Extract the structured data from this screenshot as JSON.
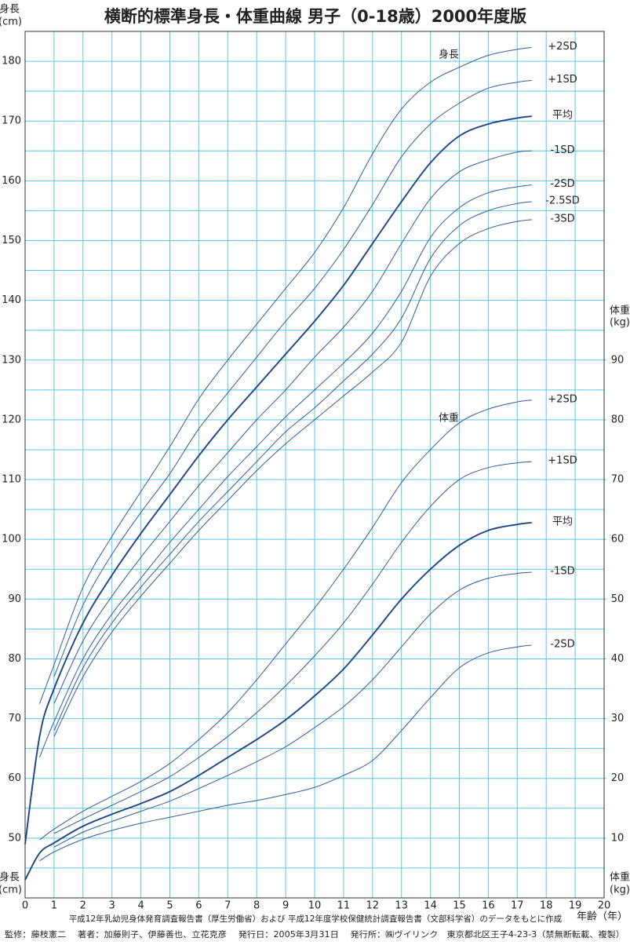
{
  "chart_data": {
    "type": "line",
    "title": "横断的標準身長・体重曲線 男子（0-18歳）2000年度版",
    "ylabel": "身長",
    "ylabel_unit": "(cm)",
    "y2label": "体重",
    "y2label_unit": "(kg)",
    "xlabel": "年齢（年）",
    "annotations": [
      "身長",
      "体重"
    ],
    "notes": [
      "平成12年乳幼児身体発育調査報告書（厚生労働省）および 平成12年度学校保健統計調査報告書（文部科学省）のデータをもとに作成",
      "監修：藤枝憲二　 著者：加藤則子、伊藤善也、立花克彦　 発行日：2005年3月31日　 発行所：㈱ヴイリンク　東京都北区王子4-23-3（禁無断転載、複製）"
    ],
    "x": [
      0,
      0.5,
      1,
      2,
      3,
      4,
      5,
      6,
      7,
      8,
      9,
      10,
      11,
      12,
      13,
      14,
      15,
      16,
      17,
      17.5
    ],
    "xlim": [
      0,
      20
    ],
    "xticks": [
      0,
      1,
      2,
      3,
      4,
      5,
      6,
      7,
      8,
      9,
      10,
      11,
      12,
      13,
      14,
      15,
      16,
      17,
      18,
      19,
      20
    ],
    "ylim": [
      40,
      185
    ],
    "yticks": [
      50,
      60,
      70,
      80,
      90,
      100,
      110,
      120,
      130,
      140,
      150,
      160,
      170,
      180
    ],
    "yminorticks": [
      45,
      55,
      65,
      75,
      85,
      95,
      105,
      115,
      125,
      135,
      145,
      155,
      165,
      175,
      185
    ],
    "y2lim": [
      0,
      145
    ],
    "y2ticks": [
      10,
      20,
      30,
      40,
      50,
      60,
      70,
      80,
      90
    ],
    "grid": true,
    "grid_color": "#5cc6e6",
    "series": [
      {
        "name": "+2SD",
        "color": "#2d5d9e",
        "line_width": 1,
        "values": [
          null,
          72.5,
          79,
          92,
          100.5,
          108,
          115.5,
          123.5,
          130,
          136,
          142,
          148,
          155.5,
          164.5,
          172,
          176.5,
          179,
          181,
          182,
          182.3
        ]
      },
      {
        "name": "+1SD",
        "color": "#2d5d9e",
        "line_width": 1,
        "values": [
          null,
          null,
          77,
          89,
          97.5,
          104.5,
          111,
          118.5,
          124.5,
          130.5,
          136.5,
          142,
          148.5,
          156,
          164,
          169.5,
          173,
          175.5,
          176.5,
          176.8
        ]
      },
      {
        "name": "平均",
        "color": "#1b4586",
        "line_width": 1.9,
        "values": [
          49,
          67,
          75,
          86,
          94,
          101,
          107.5,
          114,
          120,
          125.5,
          131,
          136.5,
          142.5,
          149.5,
          156.5,
          163,
          167.5,
          169.5,
          170.5,
          170.8
        ]
      },
      {
        "name": "-1SD",
        "color": "#2d5d9e",
        "line_width": 1,
        "values": [
          null,
          null,
          72.5,
          83,
          90.5,
          97,
          103,
          109,
          114.5,
          120,
          125,
          130.5,
          135.5,
          141.5,
          149.5,
          157,
          161.5,
          163.5,
          164.8,
          165
        ]
      },
      {
        "name": "-2SD",
        "color": "#2d5d9e",
        "line_width": 1,
        "values": [
          null,
          63.5,
          69.5,
          80,
          87.5,
          93.5,
          99.5,
          105,
          110.5,
          115.5,
          120.5,
          125,
          129.5,
          134.5,
          141.5,
          150.5,
          155.5,
          158,
          159,
          159.3
        ]
      },
      {
        "name": "-2.5SD",
        "color": "#2d5d9e",
        "line_width": 1,
        "values": [
          null,
          null,
          68,
          78.5,
          86,
          92,
          97.5,
          103,
          108,
          113,
          118,
          122,
          126.5,
          131,
          137,
          147,
          152.5,
          155,
          156.2,
          156.5
        ]
      },
      {
        "name": "-3SD",
        "color": "#2d5d9e",
        "line_width": 1,
        "values": [
          null,
          null,
          67,
          77,
          84.5,
          90.5,
          96,
          101.5,
          106.5,
          111.5,
          116,
          120,
          124,
          128,
          133,
          144,
          149.5,
          152,
          153.2,
          153.5
        ]
      },
      {
        "name": "+2SD",
        "axis": "y2",
        "color": "#2d5d9e",
        "line_width": 1,
        "values": [
          null,
          9.7,
          11.5,
          14.5,
          17,
          19.5,
          22.5,
          26.5,
          31,
          36.5,
          42.5,
          48.5,
          55,
          62,
          69.5,
          75,
          79.5,
          81.8,
          83,
          83.3
        ]
      },
      {
        "name": "+1SD",
        "axis": "y2",
        "color": "#2d5d9e",
        "line_width": 1,
        "values": [
          null,
          null,
          10.8,
          13.2,
          15.5,
          17.8,
          20.3,
          23.5,
          27,
          31,
          35.5,
          40.5,
          46,
          52.5,
          59.5,
          65.5,
          70,
          72,
          72.8,
          73
        ]
      },
      {
        "name": "平均",
        "axis": "y2",
        "color": "#1b4586",
        "line_width": 1.9,
        "values": [
          3,
          7.5,
          9.2,
          12,
          14,
          15.8,
          17.8,
          20.5,
          23.5,
          26.5,
          29.8,
          33.8,
          38.3,
          44,
          50,
          55,
          59,
          61.5,
          62.5,
          62.8
        ]
      },
      {
        "name": "-1SD",
        "axis": "y2",
        "color": "#2d5d9e",
        "line_width": 1,
        "values": [
          null,
          null,
          8.5,
          11,
          12.8,
          14.5,
          16.2,
          18.3,
          20.5,
          22.8,
          25.3,
          28.5,
          32,
          36.5,
          42,
          47.5,
          51.5,
          53.5,
          54.3,
          54.5
        ]
      },
      {
        "name": "-2SD",
        "axis": "y2",
        "color": "#2d5d9e",
        "line_width": 1,
        "values": [
          null,
          6.2,
          7.7,
          9.8,
          11.3,
          12.5,
          13.5,
          14.5,
          15.5,
          16.3,
          17.3,
          18.5,
          20.5,
          23,
          28,
          33.5,
          38.5,
          41,
          42,
          42.3
        ]
      }
    ]
  }
}
